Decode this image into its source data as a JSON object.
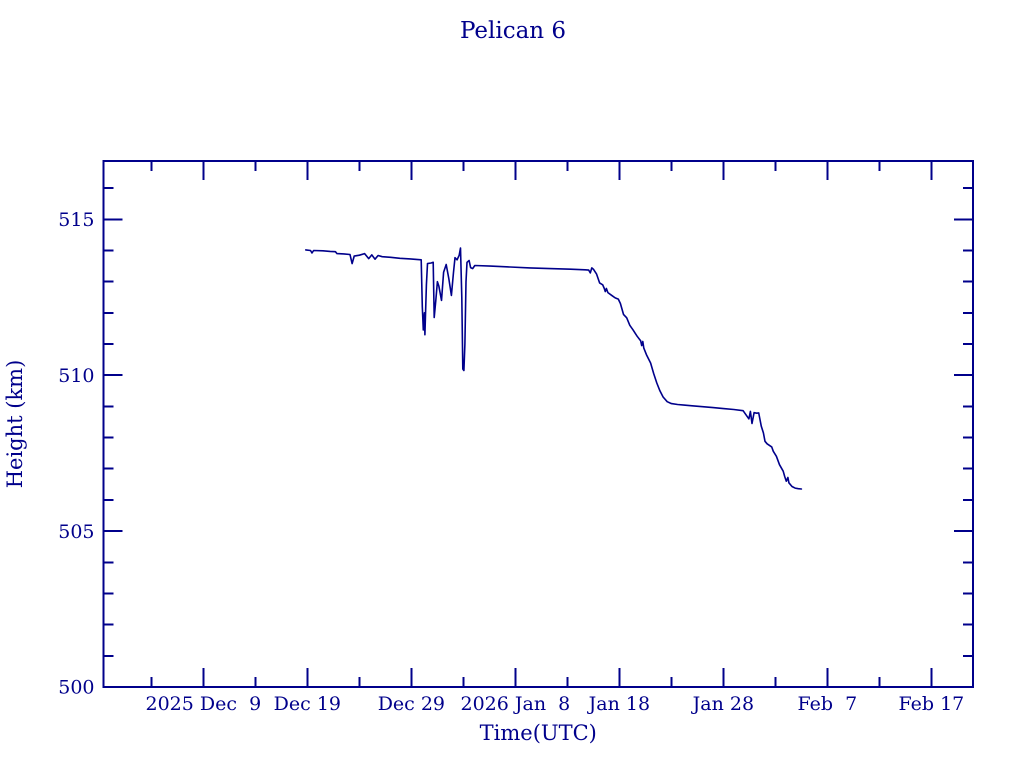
{
  "page": {
    "background_color": "#ffffff",
    "accent_color": "#00008B"
  },
  "chart_data": {
    "type": "line",
    "title": "Pelican 6",
    "xlabel": "Time(UTC)",
    "ylabel": "Height (km)",
    "grid": false,
    "legend": false,
    "line_color": "#00008B",
    "x_unit": "days relative to 2025 Dec 9 00:00 UTC",
    "x_axis": {
      "min": -9.6,
      "max": 74.0,
      "major_ticks": [
        {
          "value": 0,
          "label": "2025 Dec  9"
        },
        {
          "value": 10,
          "label": "Dec 19"
        },
        {
          "value": 20,
          "label": "Dec 29"
        },
        {
          "value": 30,
          "label": "2026 Jan  8"
        },
        {
          "value": 40,
          "label": "Jan 18"
        },
        {
          "value": 50,
          "label": "Jan 28"
        },
        {
          "value": 60,
          "label": "Feb  7"
        },
        {
          "value": 70,
          "label": "Feb 17"
        }
      ],
      "minor_tick_values": [
        -5,
        5,
        15,
        25,
        35,
        45,
        55,
        65
      ]
    },
    "y_axis": {
      "min": 500,
      "max": 516.87,
      "major_ticks": [
        {
          "value": 500,
          "label": "500"
        },
        {
          "value": 505,
          "label": "505"
        },
        {
          "value": 510,
          "label": "510"
        },
        {
          "value": 515,
          "label": "515"
        }
      ],
      "minor_tick_values": [
        501,
        502,
        503,
        504,
        506,
        507,
        508,
        509,
        511,
        512,
        513,
        514,
        516
      ]
    },
    "series": [
      {
        "name": "height",
        "color": "#00008B",
        "points": [
          [
            9.85,
            514.02
          ],
          [
            10.3,
            514.0
          ],
          [
            10.45,
            513.92
          ],
          [
            10.6,
            514.0
          ],
          [
            11.5,
            513.99
          ],
          [
            12.2,
            513.97
          ],
          [
            12.7,
            513.96
          ],
          [
            12.85,
            513.9
          ],
          [
            13.5,
            513.89
          ],
          [
            14.1,
            513.87
          ],
          [
            14.3,
            513.58
          ],
          [
            14.5,
            513.82
          ],
          [
            15.0,
            513.85
          ],
          [
            15.5,
            513.9
          ],
          [
            15.9,
            513.74
          ],
          [
            16.2,
            513.86
          ],
          [
            16.5,
            513.72
          ],
          [
            16.8,
            513.84
          ],
          [
            17.2,
            513.8
          ],
          [
            18.0,
            513.78
          ],
          [
            18.9,
            513.75
          ],
          [
            19.9,
            513.73
          ],
          [
            20.95,
            513.7
          ],
          [
            21.05,
            512.2
          ],
          [
            21.15,
            511.45
          ],
          [
            21.25,
            512.0
          ],
          [
            21.3,
            511.3
          ],
          [
            21.45,
            512.9
          ],
          [
            21.55,
            513.58
          ],
          [
            21.9,
            513.6
          ],
          [
            22.1,
            513.62
          ],
          [
            22.2,
            511.85
          ],
          [
            22.35,
            512.4
          ],
          [
            22.5,
            513.0
          ],
          [
            22.65,
            512.85
          ],
          [
            22.9,
            512.4
          ],
          [
            23.1,
            513.3
          ],
          [
            23.35,
            513.55
          ],
          [
            23.6,
            513.1
          ],
          [
            23.85,
            512.56
          ],
          [
            24.05,
            513.3
          ],
          [
            24.2,
            513.77
          ],
          [
            24.4,
            513.7
          ],
          [
            24.6,
            513.85
          ],
          [
            24.72,
            514.08
          ],
          [
            24.85,
            512.5
          ],
          [
            24.95,
            510.2
          ],
          [
            25.05,
            510.15
          ],
          [
            25.15,
            511.0
          ],
          [
            25.25,
            513.0
          ],
          [
            25.35,
            513.62
          ],
          [
            25.55,
            513.68
          ],
          [
            25.7,
            513.45
          ],
          [
            25.9,
            513.42
          ],
          [
            26.1,
            513.52
          ],
          [
            27.6,
            513.5
          ],
          [
            29.5,
            513.47
          ],
          [
            31.4,
            513.44
          ],
          [
            33.3,
            513.42
          ],
          [
            35.3,
            513.4
          ],
          [
            36.7,
            513.38
          ],
          [
            37.05,
            513.37
          ],
          [
            37.2,
            513.28
          ],
          [
            37.35,
            513.44
          ],
          [
            37.5,
            513.4
          ],
          [
            37.8,
            513.25
          ],
          [
            38.1,
            512.96
          ],
          [
            38.4,
            512.9
          ],
          [
            38.55,
            512.78
          ],
          [
            38.65,
            512.68
          ],
          [
            38.75,
            512.78
          ],
          [
            38.9,
            512.65
          ],
          [
            39.3,
            512.55
          ],
          [
            39.6,
            512.48
          ],
          [
            39.9,
            512.44
          ],
          [
            40.1,
            512.3
          ],
          [
            40.4,
            511.95
          ],
          [
            40.7,
            511.84
          ],
          [
            41.0,
            511.6
          ],
          [
            41.3,
            511.46
          ],
          [
            41.7,
            511.25
          ],
          [
            42.05,
            511.1
          ],
          [
            42.15,
            510.95
          ],
          [
            42.25,
            511.08
          ],
          [
            42.35,
            510.87
          ],
          [
            42.6,
            510.66
          ],
          [
            43.0,
            510.39
          ],
          [
            43.3,
            510.05
          ],
          [
            43.6,
            509.75
          ],
          [
            43.9,
            509.5
          ],
          [
            44.2,
            509.3
          ],
          [
            44.6,
            509.15
          ],
          [
            45.0,
            509.09
          ],
          [
            45.6,
            509.06
          ],
          [
            46.2,
            509.04
          ],
          [
            47.0,
            509.02
          ],
          [
            48.0,
            508.99
          ],
          [
            49.0,
            508.96
          ],
          [
            50.0,
            508.93
          ],
          [
            51.0,
            508.9
          ],
          [
            51.9,
            508.86
          ],
          [
            52.45,
            508.6
          ],
          [
            52.6,
            508.84
          ],
          [
            52.75,
            508.45
          ],
          [
            52.95,
            508.8
          ],
          [
            53.2,
            508.78
          ],
          [
            53.4,
            508.79
          ],
          [
            53.65,
            508.36
          ],
          [
            53.85,
            508.15
          ],
          [
            54.0,
            507.88
          ],
          [
            54.2,
            507.8
          ],
          [
            54.65,
            507.7
          ],
          [
            54.8,
            507.56
          ],
          [
            55.1,
            507.4
          ],
          [
            55.4,
            507.13
          ],
          [
            55.75,
            506.92
          ],
          [
            55.9,
            506.75
          ],
          [
            56.05,
            506.6
          ],
          [
            56.2,
            506.72
          ],
          [
            56.3,
            506.55
          ],
          [
            56.6,
            506.43
          ],
          [
            56.9,
            506.38
          ],
          [
            57.2,
            506.36
          ],
          [
            57.5,
            506.35
          ]
        ]
      }
    ]
  }
}
